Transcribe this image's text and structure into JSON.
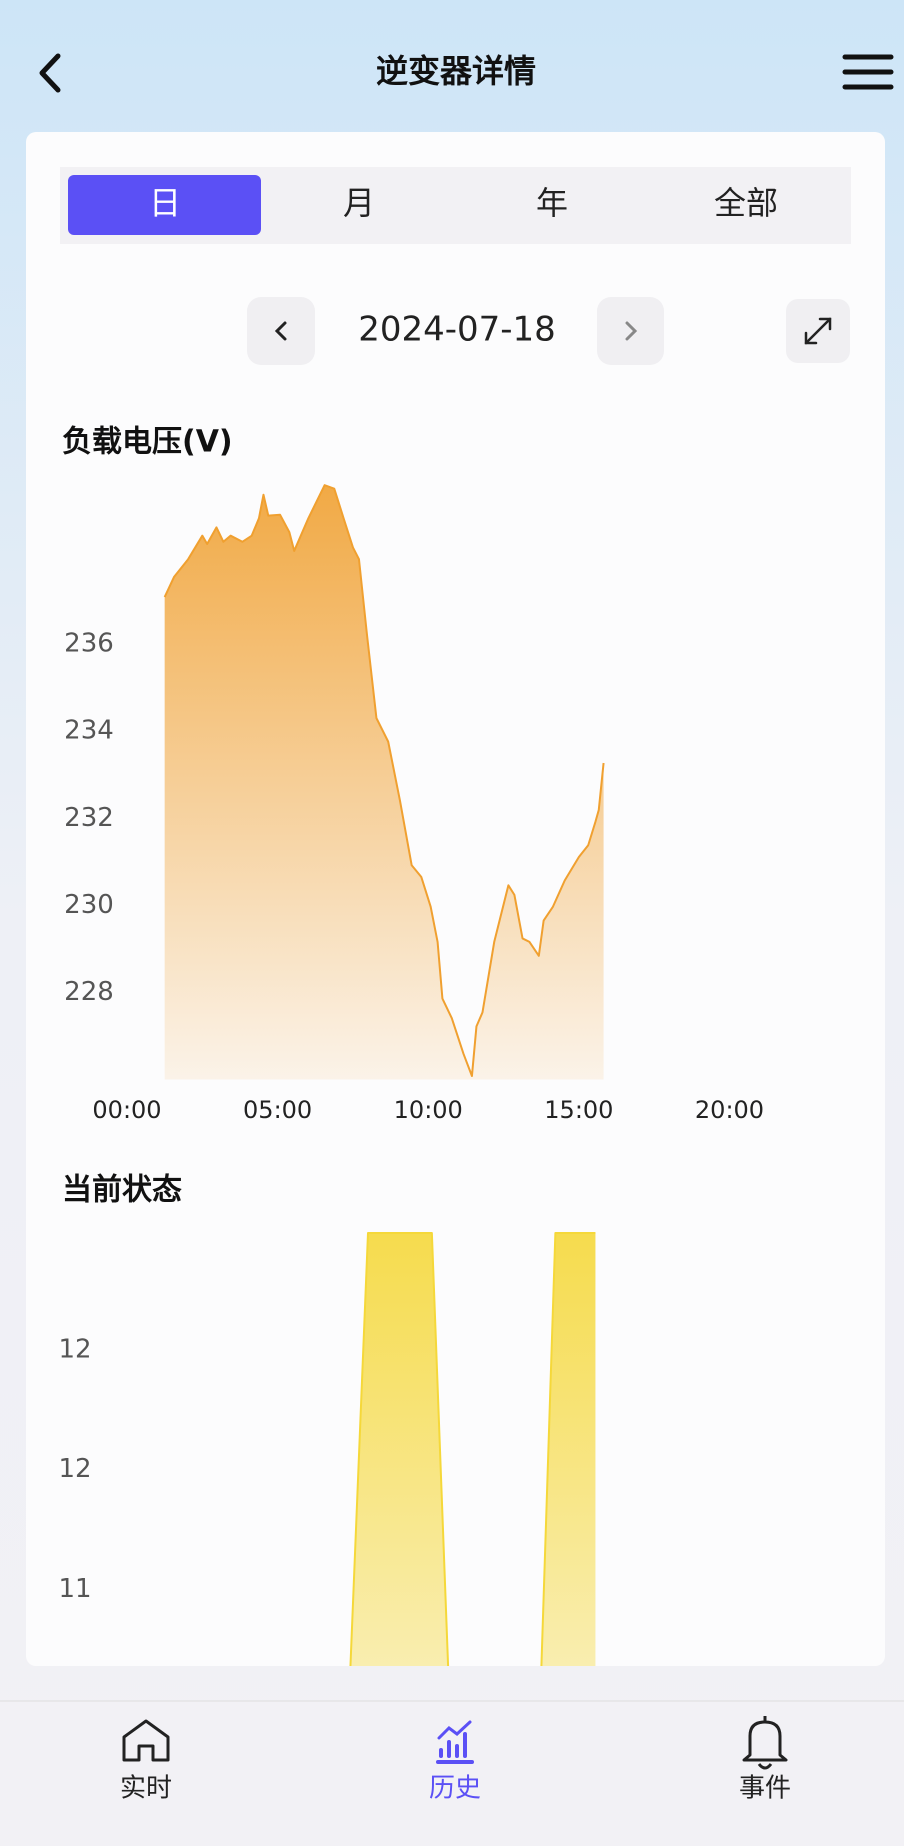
{
  "header": {
    "title": "逆变器详情"
  },
  "tabs": [
    "日",
    "月",
    "年",
    "全部"
  ],
  "date": "2024-07-18",
  "chart_data": [
    {
      "type": "area",
      "title": "负载电压(V)",
      "color": "#f0a030",
      "x": [
        1.25,
        1.56,
        2.03,
        2.5,
        2.66,
        2.97,
        3.2,
        3.44,
        3.83,
        4.14,
        4.38,
        4.53,
        4.69,
        5.08,
        5.39,
        5.55,
        6.02,
        6.56,
        6.88,
        7.19,
        7.5,
        7.7,
        7.97,
        8.28,
        8.67,
        9.06,
        9.45,
        9.77,
        10.08,
        10.31,
        10.47,
        10.78,
        11.17,
        11.45,
        11.6,
        11.8,
        12.19,
        12.66,
        12.86,
        13.13,
        13.36,
        13.67,
        13.83,
        14.14,
        14.53,
        15.0,
        15.31,
        15.55,
        15.66,
        15.82
      ],
      "values": [
        237.08,
        237.54,
        237.95,
        238.49,
        238.3,
        238.68,
        238.35,
        238.49,
        238.35,
        238.49,
        238.89,
        239.43,
        238.95,
        238.97,
        238.57,
        238.14,
        238.89,
        239.65,
        239.57,
        238.89,
        238.22,
        237.95,
        236.19,
        234.3,
        233.76,
        232.41,
        230.92,
        230.65,
        229.97,
        229.16,
        227.86,
        227.41,
        226.59,
        226.08,
        227.22,
        227.54,
        229.16,
        230.46,
        230.24,
        229.24,
        229.16,
        228.84,
        229.65,
        229.97,
        230.57,
        231.11,
        231.38,
        231.92,
        232.19,
        233.27
      ],
      "xlim": [
        0,
        24
      ],
      "xticks": [
        {
          "value": 0,
          "label": "00:00"
        },
        {
          "value": 5,
          "label": "05:00"
        },
        {
          "value": 10,
          "label": "10:00"
        },
        {
          "value": 15,
          "label": "15:00"
        },
        {
          "value": 20,
          "label": "20:00"
        }
      ],
      "ylim": [
        226,
        239.7
      ],
      "yticks": [
        236,
        234,
        232,
        230,
        228
      ]
    },
    {
      "type": "area",
      "title": "当前状态",
      "color": "#f5d83a",
      "x": [
        7.07,
        8.0,
        10.12,
        10.98,
        12,
        13.48,
        14.22,
        15.55
      ],
      "values": [
        10,
        12.89,
        12.89,
        10,
        null,
        10,
        12.89,
        12.89
      ],
      "xlim": [
        0,
        24
      ],
      "ylim": [
        10,
        12.89
      ],
      "yticks": [
        {
          "value": 12.4,
          "label": "12"
        },
        {
          "value": 11.9,
          "label": "12"
        },
        {
          "value": 11.4,
          "label": "11"
        }
      ]
    }
  ],
  "nav": [
    "实时",
    "历史",
    "事件"
  ]
}
